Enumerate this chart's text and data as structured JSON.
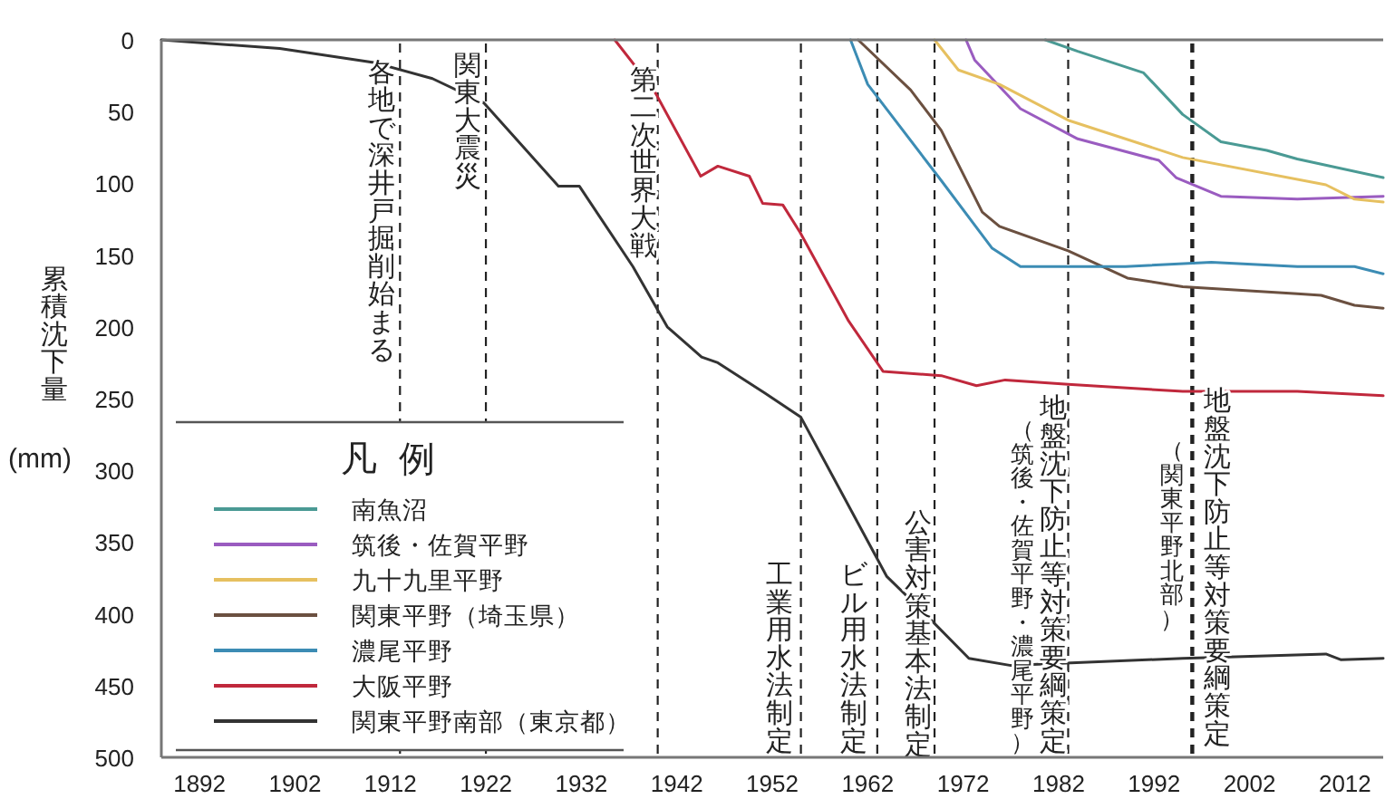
{
  "chart_data": {
    "type": "line",
    "ylabel": "累積沈下量(mm)",
    "legend_title": "凡例",
    "xlim": [
      1888,
      2016
    ],
    "xticks": [
      1892,
      1902,
      1912,
      1922,
      1932,
      1942,
      1952,
      1962,
      1972,
      1982,
      1992,
      2002,
      2012
    ],
    "ylim": [
      500,
      0
    ],
    "yticks": [
      0,
      50,
      100,
      150,
      200,
      250,
      300,
      350,
      400,
      450,
      500
    ],
    "grid": false,
    "legend": "bottom left",
    "marker": "none",
    "line_style": "solid",
    "series": [
      {
        "name": "南魚沼",
        "color": "#4a9a94",
        "x": [
          1980.6,
          1984,
          1990.9,
          1995,
          1999,
          2003.8,
          2007,
          2016
        ],
        "values": [
          0,
          8,
          23,
          52,
          71,
          77,
          83,
          96
        ]
      },
      {
        "name": "筑後・佐賀平野",
        "color": "#9a5cc0",
        "x": [
          1972.3,
          1973.2,
          1978,
          1984,
          1992.5,
          1994.3,
          1999,
          2007,
          2016
        ],
        "values": [
          0,
          14,
          48,
          69,
          84,
          96,
          109,
          111,
          109
        ]
      },
      {
        "name": "九十九里平野",
        "color": "#e6c060",
        "x": [
          1969,
          1971.5,
          1975.8,
          1983,
          1995,
          2010,
          2013,
          2016
        ],
        "values": [
          0,
          21,
          31,
          56,
          82,
          101,
          111,
          113
        ]
      },
      {
        "name": "関東平野（埼玉県）",
        "color": "#6b5040",
        "x": [
          1961,
          1966.5,
          1969.7,
          1974,
          1975.8,
          1983,
          1989.2,
          1995,
          2007,
          2009.5,
          2013,
          2016
        ],
        "values": [
          0,
          35,
          63,
          120,
          130,
          147,
          166,
          172,
          177,
          178,
          185,
          187
        ]
      },
      {
        "name": "濃尾平野",
        "color": "#3c8cb4",
        "x": [
          1960.2,
          1962,
          1969.7,
          1975,
          1978,
          1989,
          1998,
          2007,
          2013,
          2016
        ],
        "values": [
          0,
          31,
          98,
          145,
          158,
          158,
          155,
          158,
          158,
          163
        ]
      },
      {
        "name": "大阪平野",
        "color": "#c0283c",
        "x": [
          1935.5,
          1939.6,
          1944.5,
          1946.3,
          1949.6,
          1951,
          1953.1,
          1954.9,
          1960,
          1963.6,
          1969.7,
          1973.4,
          1976.4,
          1983,
          1995,
          2007,
          2016
        ],
        "values": [
          0,
          35,
          95,
          88,
          95,
          114,
          115,
          134,
          196,
          231,
          234,
          241,
          237,
          240,
          245,
          245,
          248
        ]
      },
      {
        "name": "関東平野南部（東京都）",
        "color": "#333333",
        "x": [
          1888,
          1900.4,
          1910.4,
          1916.4,
          1921.8,
          1929.6,
          1931.8,
          1937.4,
          1941,
          1944.6,
          1946.3,
          1951.2,
          1955,
          1964,
          1967.7,
          1972.6,
          1977,
          1995,
          2010,
          2011.6,
          2016
        ],
        "values": [
          0,
          6,
          16,
          27,
          44,
          102,
          102,
          158,
          200,
          221,
          225,
          246,
          263,
          374,
          398,
          431,
          436,
          431,
          428,
          432,
          431
        ]
      }
    ],
    "ref_lines": [
      {
        "axis": "x",
        "value": 1913,
        "label": "各地で深井戸掘削始まる",
        "line_style": "dashed"
      },
      {
        "axis": "x",
        "value": 1922,
        "label": "関東大震災",
        "line_style": "dashed"
      },
      {
        "axis": "x",
        "value": 1940,
        "label": "第二次世界大戦",
        "line_style": "dashed"
      },
      {
        "axis": "x",
        "value": 1955,
        "label": "工業用水法制定",
        "line_style": "dashed"
      },
      {
        "axis": "x",
        "value": 1963,
        "label": "ビル用水法制定",
        "line_style": "dashed"
      },
      {
        "axis": "x",
        "value": 1969,
        "label": "公害対策基本法制定",
        "line_style": "dashed"
      },
      {
        "axis": "x",
        "value": 1983,
        "label": "地盤沈下防止等対策要綱策定",
        "line_style": "dashed"
      },
      {
        "axis": "x",
        "value": 1996,
        "label": "地盤沈下防止等対策要綱策定",
        "line_style": "dashed"
      }
    ],
    "annotations": [
      "（筑後・佐賀平野・濃尾平野）",
      "（関東平野北部）"
    ]
  }
}
